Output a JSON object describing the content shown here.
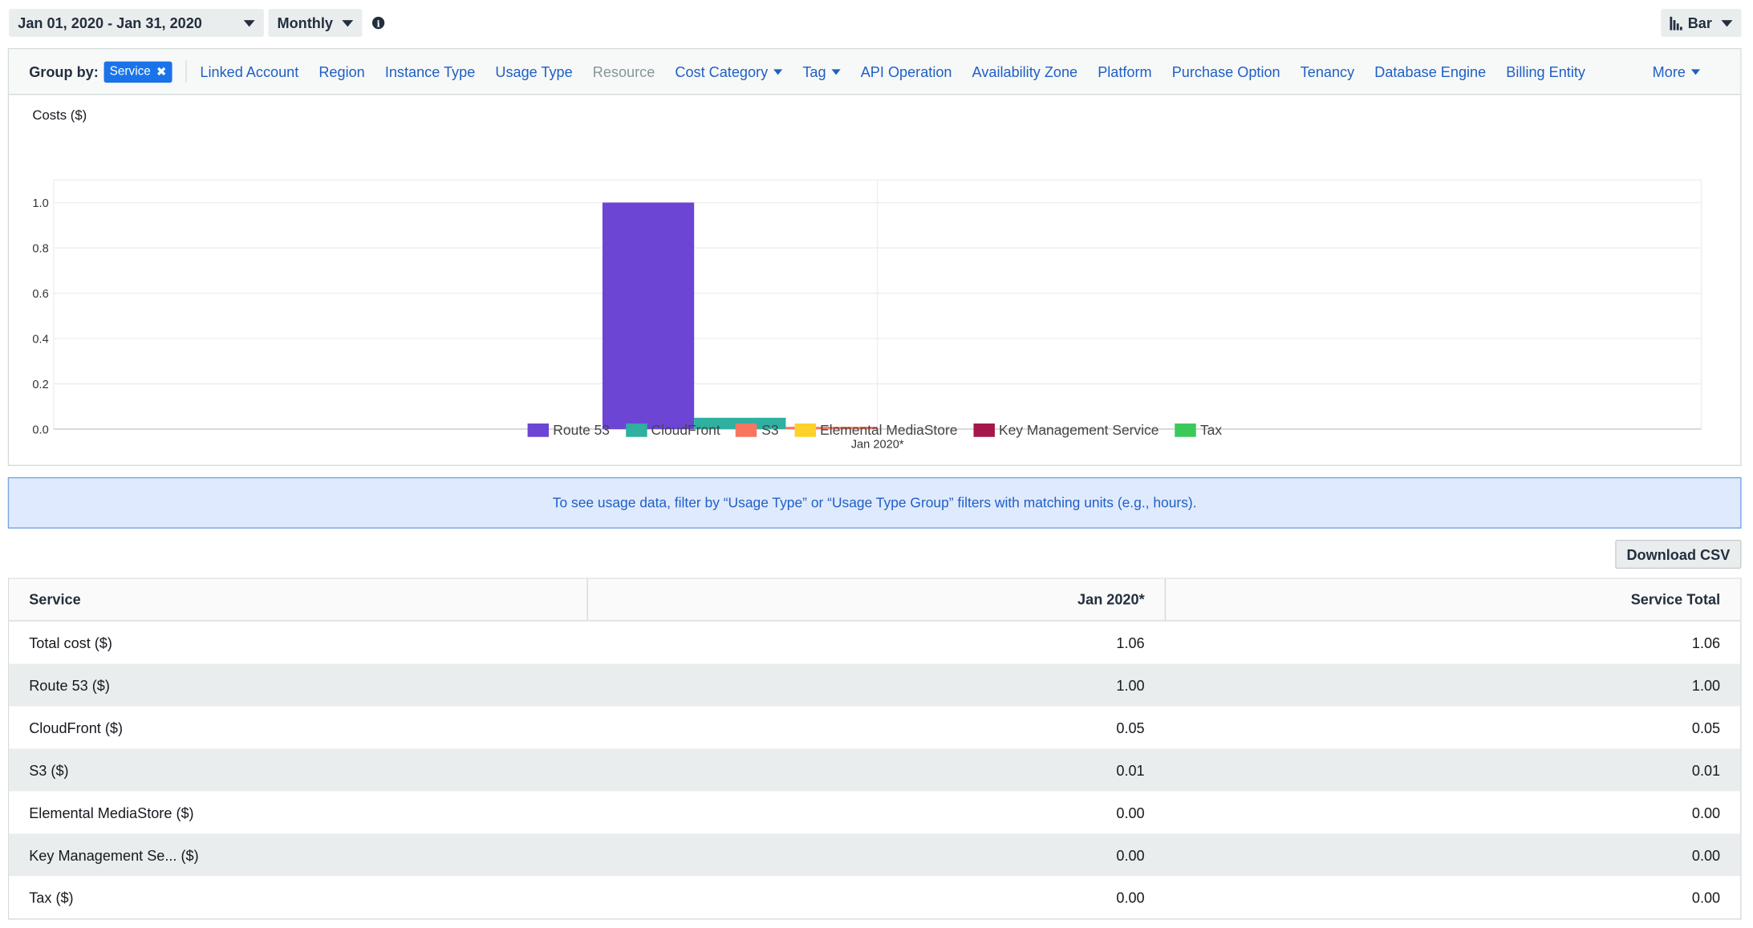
{
  "toolbar": {
    "date_range": "Jan 01, 2020 - Jan 31, 2020",
    "granularity": "Monthly",
    "chart_type": "Bar"
  },
  "groupby": {
    "label": "Group by:",
    "selected": "Service",
    "options": [
      "Linked Account",
      "Region",
      "Instance Type",
      "Usage Type",
      "Resource",
      "Cost Category",
      "Tag",
      "API Operation",
      "Availability Zone",
      "Platform",
      "Purchase Option",
      "Tenancy",
      "Database Engine",
      "Billing Entity"
    ],
    "more": "More"
  },
  "chart_data": {
    "type": "bar",
    "ylabel": "Costs ($)",
    "categories": [
      "Jan 2020*"
    ],
    "ylim": [
      0,
      1.1
    ],
    "yticks": [
      "0.0",
      "0.2",
      "0.4",
      "0.6",
      "0.8",
      "1.0"
    ],
    "grid": true,
    "legend_position": "bottom",
    "series": [
      {
        "name": "Route 53",
        "color": "#6c45d4",
        "values": [
          1.0
        ]
      },
      {
        "name": "CloudFront",
        "color": "#2fb0a0",
        "values": [
          0.05
        ]
      },
      {
        "name": "S3",
        "color": "#f87560",
        "values": [
          0.01
        ]
      },
      {
        "name": "Elemental MediaStore",
        "color": "#fcd12a",
        "values": [
          0.0
        ]
      },
      {
        "name": "Key Management Service",
        "color": "#a3174d",
        "values": [
          0.0
        ]
      },
      {
        "name": "Tax",
        "color": "#3bc95a",
        "values": [
          0.0
        ]
      }
    ]
  },
  "banner": "To see usage data, filter by “Usage Type” or “Usage Type Group” filters with matching units (e.g., hours).",
  "download_csv": "Download CSV",
  "table": {
    "headers": [
      "Service",
      "Jan 2020*",
      "Service Total"
    ],
    "rows": [
      [
        "Total cost ($)",
        "1.06",
        "1.06"
      ],
      [
        "Route 53 ($)",
        "1.00",
        "1.00"
      ],
      [
        "CloudFront ($)",
        "0.05",
        "0.05"
      ],
      [
        "S3 ($)",
        "0.01",
        "0.01"
      ],
      [
        "Elemental MediaStore ($)",
        "0.00",
        "0.00"
      ],
      [
        "Key Management Se... ($)",
        "0.00",
        "0.00"
      ],
      [
        "Tax ($)",
        "0.00",
        "0.00"
      ]
    ]
  }
}
